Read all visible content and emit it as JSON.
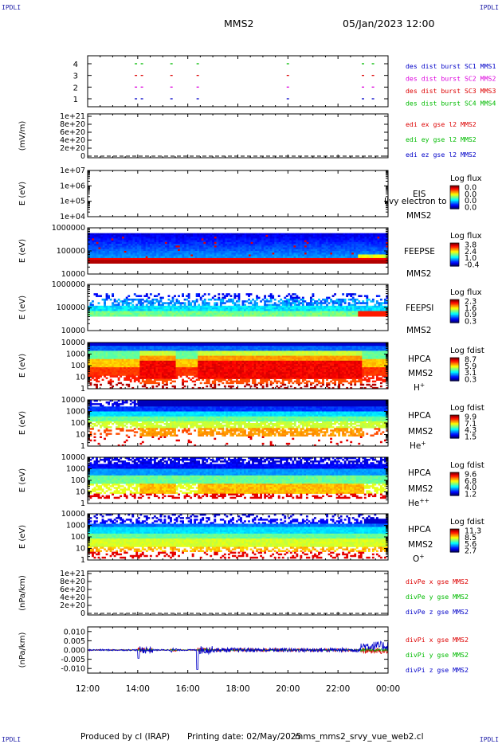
{
  "header": {
    "corner_label": "IPDLI",
    "spacecraft": "MMS2",
    "date_time": "05/Jan/2023 12:00"
  },
  "footer": {
    "produced_by": "Produced by cl (IRAP)",
    "printing_date": "Printing date: 02/May/2025",
    "script_name": "mms_mms2_srvy_vue_web2.cl"
  },
  "colors": {
    "axis": "#000000",
    "blue": "#0000c8",
    "magenta": "#dd00dd",
    "red": "#dd0000",
    "green": "#00bb00"
  },
  "chart_data": [
    {
      "id": "burst",
      "type": "scatter",
      "yticks": [
        "1",
        "2",
        "3",
        "4"
      ],
      "ylim": [
        0.5,
        4.5
      ],
      "series": [
        {
          "name": "des dist burst SC1 MMS1",
          "color": "#0000c8",
          "y": 1
        },
        {
          "name": "des dist burst SC2 MMS2",
          "color": "#dd00dd",
          "y": 2
        },
        {
          "name": "des dist burst SC3 MMS3",
          "color": "#dd0000",
          "y": 3
        },
        {
          "name": "des dist burst SC4 MMS4",
          "color": "#00bb00",
          "y": 4
        }
      ],
      "burst_times_h": [
        13.88,
        14.12,
        15.3,
        16.35,
        19.95,
        22.95,
        23.35
      ]
    },
    {
      "id": "edi",
      "type": "line",
      "ylabel": "(mV/m)",
      "yticks": [
        "1e+21",
        "8e+20",
        "6e+20",
        "4e+20",
        "2e+20",
        "0"
      ],
      "ylim": [
        0,
        1e+21
      ],
      "series": [
        {
          "name": "edi ex gse l2 MMS2",
          "color": "#dd0000"
        },
        {
          "name": "edi ey gse l2 MMS2",
          "color": "#00bb00"
        },
        {
          "name": "edi ez gse l2 MMS2",
          "color": "#0000c8"
        }
      ]
    },
    {
      "id": "eis",
      "type": "heatmap",
      "ylabel": "E (eV)",
      "yticks": [
        "1e+07",
        "1e+06",
        "1e+05",
        "1e+04"
      ],
      "scale": "log",
      "instrument": "EIS",
      "product": "Ilvy electron to",
      "spacecraft": "MMS2",
      "cbar_title": "Log flux",
      "cbar_ticks": [
        "0.0",
        "0.0",
        "0.0",
        "0.0"
      ]
    },
    {
      "id": "feepse",
      "type": "heatmap",
      "ylabel": "E (eV)",
      "yticks": [
        "1000000",
        "100000",
        "10000"
      ],
      "scale": "log",
      "instrument": "FEEPSE",
      "spacecraft": "MMS2",
      "cbar_title": "Log flux",
      "cbar_ticks": [
        "3.8",
        "2.4",
        "1.0",
        "-0.4"
      ]
    },
    {
      "id": "feepsi",
      "type": "heatmap",
      "ylabel": "E (eV)",
      "yticks": [
        "1000000",
        "100000",
        "10000"
      ],
      "scale": "log",
      "instrument": "FEEPSI",
      "spacecraft": "MMS2",
      "cbar_title": "Log flux",
      "cbar_ticks": [
        "2.3",
        "1.6",
        "0.9",
        "0.3"
      ]
    },
    {
      "id": "hpca_h",
      "type": "heatmap",
      "ylabel": "E (eV)",
      "yticks": [
        "10000",
        "1000",
        "100",
        "10",
        "1"
      ],
      "scale": "log",
      "instrument": "HPCA",
      "spacecraft": "MMS2",
      "species": "H",
      "charge": "+",
      "cbar_title": "Log fdist",
      "cbar_ticks": [
        "8.7",
        "5.9",
        "3.1",
        "0.3"
      ]
    },
    {
      "id": "hpca_he1",
      "type": "heatmap",
      "ylabel": "E (eV)",
      "yticks": [
        "10000",
        "1000",
        "100",
        "10",
        "1"
      ],
      "scale": "log",
      "instrument": "HPCA",
      "spacecraft": "MMS2",
      "species": "He",
      "charge": "+",
      "cbar_title": "Log fdist",
      "cbar_ticks": [
        "9.9",
        "7.1",
        "4.3",
        "1.5"
      ]
    },
    {
      "id": "hpca_he2",
      "type": "heatmap",
      "ylabel": "E (eV)",
      "yticks": [
        "10000",
        "1000",
        "100",
        "10",
        "1"
      ],
      "scale": "log",
      "instrument": "HPCA",
      "spacecraft": "MMS2",
      "species": "He",
      "charge": "++",
      "cbar_title": "Log fdist",
      "cbar_ticks": [
        "9.6",
        "6.8",
        "4.0",
        "1.2"
      ]
    },
    {
      "id": "hpca_o",
      "type": "heatmap",
      "ylabel": "E (eV)",
      "yticks": [
        "10000",
        "1000",
        "100",
        "10",
        "1"
      ],
      "scale": "log",
      "instrument": "HPCA",
      "spacecraft": "MMS2",
      "species": "O",
      "charge": "+",
      "cbar_title": "Log fdist",
      "cbar_ticks": [
        "11.3",
        "8.5",
        "5.6",
        "2.7"
      ]
    },
    {
      "id": "divpe",
      "type": "line",
      "ylabel": "(nPa/km)",
      "yticks": [
        "1e+21",
        "8e+20",
        "6e+20",
        "4e+20",
        "2e+20",
        "0"
      ],
      "ylim": [
        0,
        1e+21
      ],
      "series": [
        {
          "name": "divPe x gse MMS2",
          "color": "#dd0000"
        },
        {
          "name": "divPe y gse MMS2",
          "color": "#00bb00"
        },
        {
          "name": "divPe z gse MMS2",
          "color": "#0000c8"
        }
      ]
    },
    {
      "id": "divpi",
      "type": "line",
      "ylabel": "(nPa/km)",
      "yticks": [
        "0.010",
        "0.005",
        "0.000",
        "-0.005",
        "-0.010"
      ],
      "ylim": [
        -0.0125,
        0.0125
      ],
      "xticks": [
        "12:00",
        "14:00",
        "16:00",
        "18:00",
        "20:00",
        "22:00",
        "00:00"
      ],
      "xlim": [
        12,
        24
      ],
      "series": [
        {
          "name": "divPi x gse MMS2",
          "color": "#dd0000"
        },
        {
          "name": "divPi y gse MMS2",
          "color": "#00bb00"
        },
        {
          "name": "divPi z gse MMS2",
          "color": "#0000c8"
        }
      ]
    }
  ]
}
